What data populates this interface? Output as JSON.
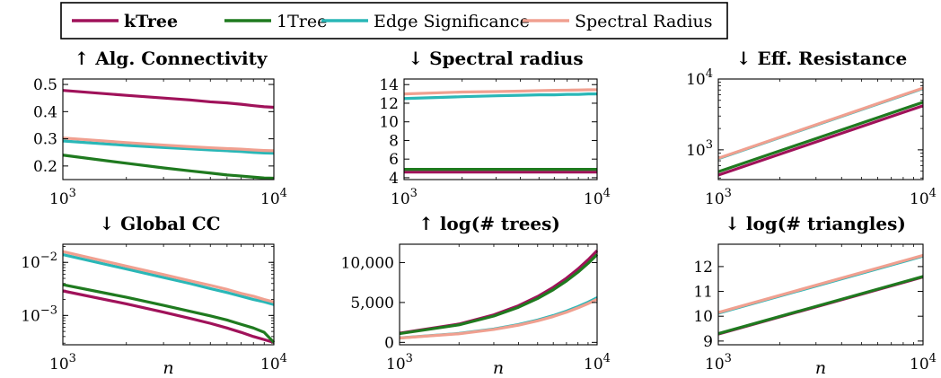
{
  "colors": {
    "kTree": "#a0125a",
    "1Tree": "#1f7a1f",
    "Edge Significance": "#2ab7b7",
    "Spectral Radius": "#f0a090"
  },
  "legend": {
    "entries": [
      {
        "label": "kTree",
        "bold": true,
        "color": "#a0125a"
      },
      {
        "label": "1Tree",
        "bold": false,
        "color": "#1f7a1f"
      },
      {
        "label": "Edge Significance",
        "bold": false,
        "color": "#2ab7b7"
      },
      {
        "label": "Spectral Radius",
        "bold": false,
        "color": "#f0a090"
      }
    ]
  },
  "chart_data": [
    {
      "type": "line",
      "title": "↑ Alg. Connectivity",
      "xlabel": "",
      "xscale": "log",
      "xlim": [
        1000,
        10000
      ],
      "yscale": "linear",
      "ylim": [
        0.15,
        0.52
      ],
      "xticks": [
        {
          "value": 1000,
          "base": "10",
          "exp": "3"
        },
        {
          "value": 10000,
          "base": "10",
          "exp": "4"
        }
      ],
      "yticks": [
        {
          "value": 0.2,
          "label": "0.2"
        },
        {
          "value": 0.3,
          "label": "0.3"
        },
        {
          "value": 0.4,
          "label": "0.4"
        },
        {
          "value": 0.5,
          "label": "0.5"
        }
      ],
      "x": [
        1000,
        2000,
        3000,
        4000,
        5000,
        6000,
        7000,
        8000,
        9000,
        10000
      ],
      "series": [
        {
          "name": "kTree",
          "values": [
            0.478,
            0.46,
            0.45,
            0.443,
            0.436,
            0.432,
            0.427,
            0.422,
            0.418,
            0.416
          ]
        },
        {
          "name": "1Tree",
          "values": [
            0.24,
            0.21,
            0.193,
            0.182,
            0.174,
            0.167,
            0.163,
            0.159,
            0.156,
            0.155
          ]
        },
        {
          "name": "Edge Significance",
          "values": [
            0.292,
            0.276,
            0.268,
            0.263,
            0.259,
            0.256,
            0.253,
            0.25,
            0.248,
            0.247
          ]
        },
        {
          "name": "Spectral Radius",
          "values": [
            0.303,
            0.286,
            0.277,
            0.271,
            0.267,
            0.264,
            0.262,
            0.259,
            0.257,
            0.256
          ]
        }
      ]
    },
    {
      "type": "line",
      "title": "↓ Spectral radius",
      "xlabel": "",
      "xscale": "log",
      "xlim": [
        1000,
        10000
      ],
      "yscale": "linear",
      "ylim": [
        3.8,
        14.6
      ],
      "xticks": [
        {
          "value": 1000,
          "base": "10",
          "exp": "3"
        },
        {
          "value": 10000,
          "base": "10",
          "exp": "4"
        }
      ],
      "yticks": [
        {
          "value": 4,
          "label": "4"
        },
        {
          "value": 6,
          "label": "6"
        },
        {
          "value": 8,
          "label": "8"
        },
        {
          "value": 10,
          "label": "10"
        },
        {
          "value": 12,
          "label": "12"
        },
        {
          "value": 14,
          "label": "14"
        }
      ],
      "x": [
        1000,
        2000,
        3000,
        4000,
        5000,
        6000,
        7000,
        8000,
        9000,
        10000
      ],
      "series": [
        {
          "name": "kTree",
          "values": [
            4.6,
            4.6,
            4.6,
            4.6,
            4.6,
            4.6,
            4.6,
            4.6,
            4.6,
            4.6
          ]
        },
        {
          "name": "1Tree",
          "values": [
            4.9,
            4.9,
            4.9,
            4.9,
            4.9,
            4.9,
            4.9,
            4.9,
            4.9,
            4.9
          ]
        },
        {
          "name": "Edge Significance",
          "values": [
            12.5,
            12.7,
            12.8,
            12.85,
            12.9,
            12.9,
            12.95,
            12.95,
            13.0,
            13.0
          ]
        },
        {
          "name": "Spectral Radius",
          "values": [
            13.0,
            13.2,
            13.25,
            13.3,
            13.35,
            13.38,
            13.4,
            13.42,
            13.44,
            13.45
          ]
        }
      ]
    },
    {
      "type": "line",
      "title": "↓ Eff. Resistance",
      "xlabel": "",
      "xscale": "log",
      "xlim": [
        1000,
        10000
      ],
      "yscale": "log",
      "ylim": [
        380,
        10000
      ],
      "xticks": [
        {
          "value": 1000,
          "base": "10",
          "exp": "3"
        },
        {
          "value": 10000,
          "base": "10",
          "exp": "4"
        }
      ],
      "yticks": [
        {
          "value": 1000,
          "base": "10",
          "exp": "3"
        },
        {
          "value": 10000,
          "base": "10",
          "exp": "4"
        }
      ],
      "x": [
        1000,
        10000
      ],
      "series": [
        {
          "name": "kTree",
          "values": [
            440,
            4200
          ]
        },
        {
          "name": "1Tree",
          "values": [
            490,
            4700
          ]
        },
        {
          "name": "Edge Significance",
          "values": [
            750,
            7350
          ]
        },
        {
          "name": "Spectral Radius",
          "values": [
            760,
            7450
          ]
        }
      ]
    },
    {
      "type": "line",
      "title": "↓ Global CC",
      "xlabel": "n",
      "xscale": "log",
      "xlim": [
        1000,
        10000
      ],
      "yscale": "log",
      "ylim": [
        0.00028,
        0.022
      ],
      "xticks": [
        {
          "value": 1000,
          "base": "10",
          "exp": "3"
        },
        {
          "value": 10000,
          "base": "10",
          "exp": "4"
        }
      ],
      "yticks": [
        {
          "value": 0.001,
          "base": "10",
          "exp": "−3"
        },
        {
          "value": 0.01,
          "base": "10",
          "exp": "−2"
        }
      ],
      "x": [
        1000,
        2000,
        3000,
        4000,
        5000,
        6000,
        7000,
        8000,
        9000,
        10000
      ],
      "series": [
        {
          "name": "kTree",
          "values": [
            0.0029,
            0.00165,
            0.00115,
            0.00088,
            0.00071,
            0.00058,
            0.00048,
            0.0004,
            0.00035,
            0.00031
          ]
        },
        {
          "name": "1Tree",
          "values": [
            0.0038,
            0.0022,
            0.00155,
            0.0012,
            0.00098,
            0.00082,
            0.00068,
            0.00058,
            0.00048,
            0.00031
          ]
        },
        {
          "name": "Edge Significance",
          "values": [
            0.014,
            0.0075,
            0.0052,
            0.004,
            0.0032,
            0.0027,
            0.0023,
            0.002,
            0.0018,
            0.0016
          ]
        },
        {
          "name": "Spectral Radius",
          "values": [
            0.016,
            0.0085,
            0.0059,
            0.0045,
            0.0037,
            0.0031,
            0.0026,
            0.0023,
            0.002,
            0.0018
          ]
        }
      ]
    },
    {
      "type": "line",
      "title": "↑ log(# trees)",
      "xlabel": "n",
      "xscale": "log",
      "xlim": [
        1000,
        10000
      ],
      "yscale": "linear",
      "ylim": [
        -300,
        12300
      ],
      "xticks": [
        {
          "value": 1000,
          "base": "10",
          "exp": "3"
        },
        {
          "value": 10000,
          "base": "10",
          "exp": "4"
        }
      ],
      "yticks": [
        {
          "value": 0,
          "label": "0"
        },
        {
          "value": 5000,
          "label": "5,000"
        },
        {
          "value": 10000,
          "label": "10,000"
        }
      ],
      "x": [
        1000,
        2000,
        3000,
        4000,
        5000,
        6000,
        7000,
        8000,
        9000,
        10000
      ],
      "series": [
        {
          "name": "kTree",
          "values": [
            1150,
            2300,
            3450,
            4600,
            5750,
            6900,
            8050,
            9200,
            10350,
            11500
          ]
        },
        {
          "name": "1Tree",
          "values": [
            1100,
            2200,
            3300,
            4400,
            5500,
            6600,
            7700,
            8800,
            9900,
            11000
          ]
        },
        {
          "name": "Edge Significance",
          "values": [
            560,
            1120,
            1680,
            2240,
            2800,
            3360,
            3920,
            4480,
            5040,
            5600
          ]
        },
        {
          "name": "Spectral Radius",
          "values": [
            540,
            1080,
            1620,
            2160,
            2700,
            3240,
            3780,
            4320,
            4860,
            5400
          ]
        }
      ]
    },
    {
      "type": "line",
      "title": "↓ log(# triangles)",
      "xlabel": "n",
      "xscale": "log",
      "xlim": [
        1000,
        10000
      ],
      "yscale": "linear",
      "ylim": [
        8.85,
        12.9
      ],
      "xticks": [
        {
          "value": 1000,
          "base": "10",
          "exp": "3"
        },
        {
          "value": 10000,
          "base": "10",
          "exp": "4"
        }
      ],
      "yticks": [
        {
          "value": 9,
          "label": "9"
        },
        {
          "value": 10,
          "label": "10"
        },
        {
          "value": 11,
          "label": "11"
        },
        {
          "value": 12,
          "label": "12"
        }
      ],
      "x": [
        1000,
        10000
      ],
      "series": [
        {
          "name": "kTree",
          "values": [
            9.28,
            11.58
          ]
        },
        {
          "name": "1Tree",
          "values": [
            9.3,
            11.6
          ]
        },
        {
          "name": "Edge Significance",
          "values": [
            10.12,
            12.42
          ]
        },
        {
          "name": "Spectral Radius",
          "values": [
            10.15,
            12.45
          ]
        }
      ]
    }
  ]
}
